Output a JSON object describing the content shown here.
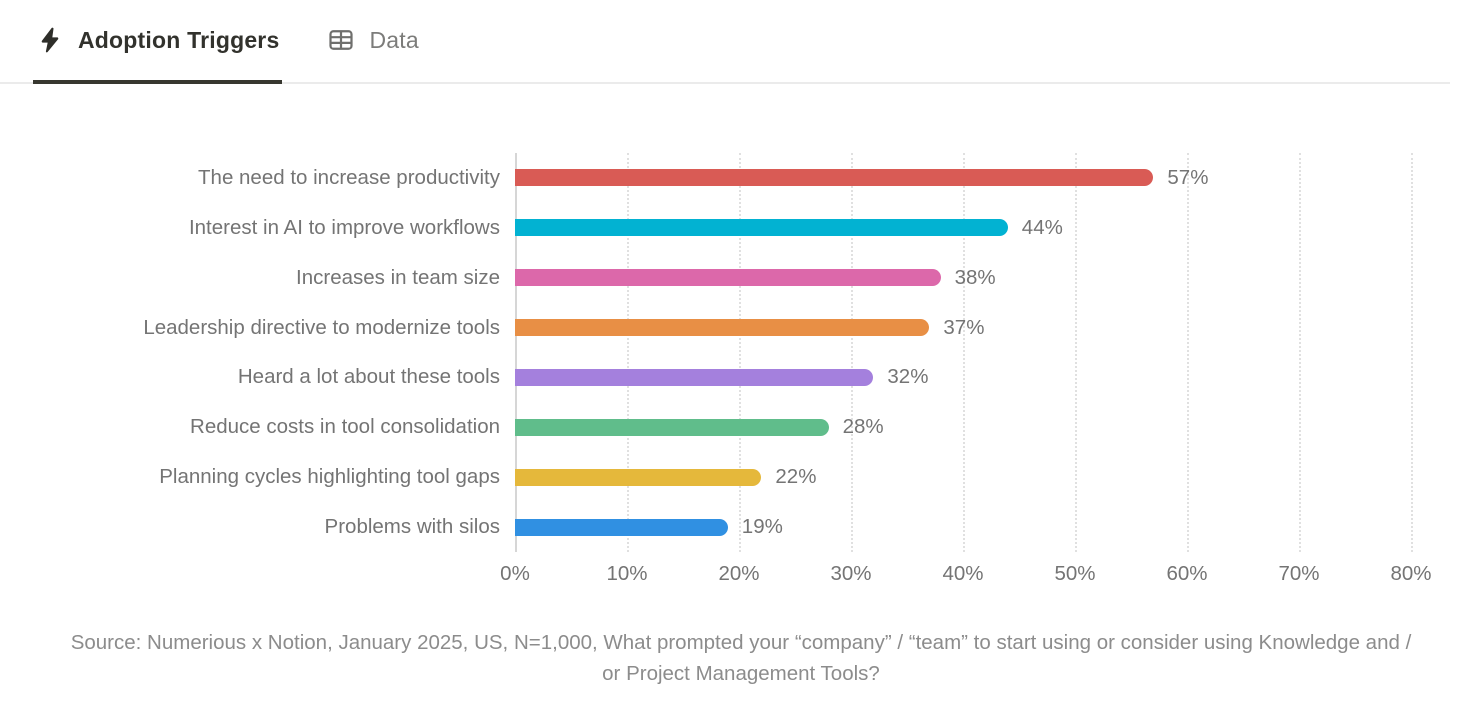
{
  "tabs": [
    {
      "label": "Adoption Triggers",
      "icon": "bolt-icon",
      "active": true
    },
    {
      "label": "Data",
      "icon": "table-icon",
      "active": false
    }
  ],
  "chart_data": {
    "type": "bar",
    "orientation": "horizontal",
    "title": "Adoption Triggers",
    "categories": [
      "The need to increase productivity",
      "Interest in AI to improve workflows",
      "Increases in team size",
      "Leadership directive to modernize tools",
      "Heard a lot about these tools",
      "Reduce costs in tool consolidation",
      "Planning cycles highlighting tool gaps",
      "Problems with silos"
    ],
    "values": [
      57,
      44,
      38,
      37,
      32,
      28,
      22,
      19
    ],
    "value_labels": [
      "57%",
      "44%",
      "38%",
      "37%",
      "32%",
      "28%",
      "22%",
      "19%"
    ],
    "bar_colors": [
      "#d95b55",
      "#02b2d2",
      "#dc68aa",
      "#e88f45",
      "#a480dd",
      "#60bd8b",
      "#e5b83b",
      "#3090e2"
    ],
    "xlabel": "",
    "ylabel": "",
    "xlim": [
      0,
      80
    ],
    "x_ticks": [
      "0%",
      "10%",
      "20%",
      "30%",
      "40%",
      "50%",
      "60%",
      "70%",
      "80%"
    ],
    "grid": "vertical-dotted",
    "legend": "none"
  },
  "source": {
    "text": "Source: Numerious x Notion, January 2025, US, N=1,000, What prompted your “company” / “team” to start using or consider using Knowledge and / or Project Management Tools?"
  },
  "colors": {
    "tab_active_text": "#32322d",
    "tab_inactive_text": "#7c7c7a",
    "tab_underline": "#37372f",
    "tabbar_border": "#ebebeb",
    "axis_text": "#747474",
    "gridline": "#e0e0e0",
    "source_text": "#8c8c8c",
    "background": "#ffffff"
  }
}
